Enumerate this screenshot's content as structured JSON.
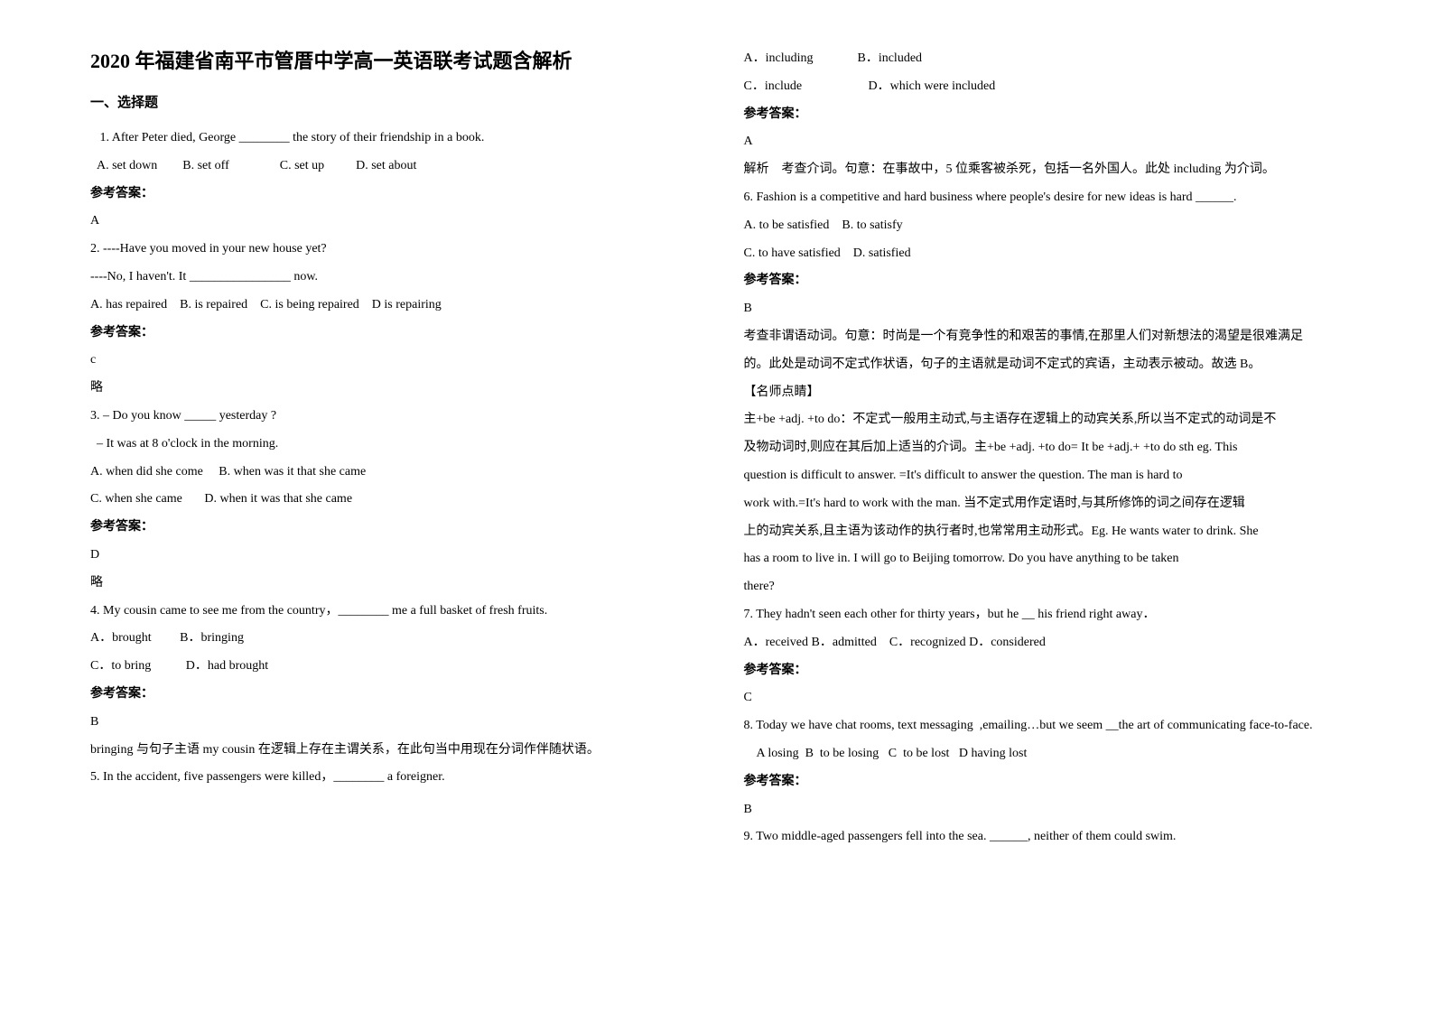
{
  "title": "2020 年福建省南平市管厝中学高一英语联考试题含解析",
  "section_heading": "一、选择题",
  "left_lines": [
    {
      "text": "   1. After Peter died, George ________ the story of their friendship in a book.",
      "cls": "line-en"
    },
    {
      "text": "  A. set down        B. set off                C. set up          D. set about",
      "cls": "line-en"
    },
    {
      "text": "参考答案：",
      "cls": "answer-label"
    },
    {
      "text": "A",
      "cls": "line-en"
    },
    {
      "text": "2. ----Have you moved in your new house yet?",
      "cls": "line-en"
    },
    {
      "text": "----No, I haven't. It ________________ now.",
      "cls": "line-en"
    },
    {
      "text": "A. has repaired    B. is repaired    C. is being repaired    D is repairing",
      "cls": "line-en"
    },
    {
      "text": "参考答案：",
      "cls": "answer-label"
    },
    {
      "text": "c",
      "cls": "line-en"
    },
    {
      "text": "略",
      "cls": ""
    },
    {
      "text": "3. – Do you know _____ yesterday ?",
      "cls": "line-en"
    },
    {
      "text": "  – It was at 8 o'clock in the morning.",
      "cls": "line-en"
    },
    {
      "text": "A. when did she come     B. when was it that she came",
      "cls": "line-en"
    },
    {
      "text": "C. when she came       D. when it was that she came",
      "cls": "line-en"
    },
    {
      "text": "参考答案：",
      "cls": "answer-label"
    },
    {
      "text": "D",
      "cls": "line-en"
    },
    {
      "text": "略",
      "cls": ""
    },
    {
      "text": "4. My cousin came to see me from the country，________ me a full basket of fresh fruits.",
      "cls": "line-en"
    },
    {
      "text": "A．brought         B．bringing",
      "cls": "line-en"
    },
    {
      "text": "C．to bring           D．had brought",
      "cls": "line-en"
    },
    {
      "text": "参考答案：",
      "cls": "answer-label"
    },
    {
      "text": "B",
      "cls": "line-en"
    },
    {
      "text": "bringing 与句子主语 my cousin 在逻辑上存在主谓关系，在此句当中用现在分词作伴随状语。",
      "cls": ""
    },
    {
      "text": "5. In the accident, five passengers were killed，________ a foreigner.",
      "cls": "line-en"
    }
  ],
  "right_lines": [
    {
      "text": "A．including              B．included",
      "cls": "line-en"
    },
    {
      "text": "C．include                     D．which were included",
      "cls": "line-en"
    },
    {
      "text": "参考答案：",
      "cls": "answer-label"
    },
    {
      "text": "A",
      "cls": "line-en"
    },
    {
      "text": "解析    考查介词。句意：在事故中，5 位乘客被杀死，包括一名外国人。此处 including 为介词。",
      "cls": ""
    },
    {
      "text": "6. Fashion is a competitive and hard business where people's desire for new ideas is hard ______.",
      "cls": "line-en"
    },
    {
      "text": "A. to be satisfied    B. to satisfy",
      "cls": "line-en"
    },
    {
      "text": "C. to have satisfied    D. satisfied",
      "cls": "line-en"
    },
    {
      "text": "参考答案：",
      "cls": "answer-label"
    },
    {
      "text": "B",
      "cls": "line-en"
    },
    {
      "text": "考查非谓语动词。句意：时尚是一个有竞争性的和艰苦的事情,在那里人们对新想法的渴望是很难满足",
      "cls": ""
    },
    {
      "text": "的。此处是动词不定式作状语，句子的主语就是动词不定式的宾语，主动表示被动。故选 B。",
      "cls": ""
    },
    {
      "text": "【名师点睛】",
      "cls": ""
    },
    {
      "text": "主+be +adj. +to do：不定式一般用主动式,与主语存在逻辑上的动宾关系,所以当不定式的动词是不",
      "cls": ""
    },
    {
      "text": "及物动词时,则应在其后加上适当的介词。主+be +adj. +to do= It be +adj.+ +to do sth eg. This",
      "cls": ""
    },
    {
      "text": "question is difficult to answer. =It's difficult to answer the question. The man is hard to",
      "cls": "line-en"
    },
    {
      "text": "work with.=It's hard to work with the man. 当不定式用作定语时,与其所修饰的词之间存在逻辑",
      "cls": ""
    },
    {
      "text": "上的动宾关系,且主语为该动作的执行者时,也常常用主动形式。Eg. He wants water to drink. She",
      "cls": ""
    },
    {
      "text": "has a room to live in. I will go to Beijing tomorrow. Do you have anything to be taken",
      "cls": "line-en"
    },
    {
      "text": "there?",
      "cls": "line-en"
    },
    {
      "text": "7. They hadn't seen each other for thirty years，but he __ his friend right away．",
      "cls": "line-en"
    },
    {
      "text": "A．received B．admitted    C．recognized D．considered",
      "cls": "line-en"
    },
    {
      "text": "参考答案：",
      "cls": "answer-label"
    },
    {
      "text": "C",
      "cls": "line-en"
    },
    {
      "text": "8. Today we have chat rooms, text messaging  ,emailing…but we seem __the art of communicating face-to-face.",
      "cls": "line-en"
    },
    {
      "text": "    A losing  B  to be losing   C  to be lost   D having lost",
      "cls": "line-en"
    },
    {
      "text": "参考答案：",
      "cls": "answer-label"
    },
    {
      "text": "B",
      "cls": "line-en"
    },
    {
      "text": "9. Two middle-aged passengers fell into the sea. ______, neither of them could swim.",
      "cls": "line-en"
    }
  ]
}
